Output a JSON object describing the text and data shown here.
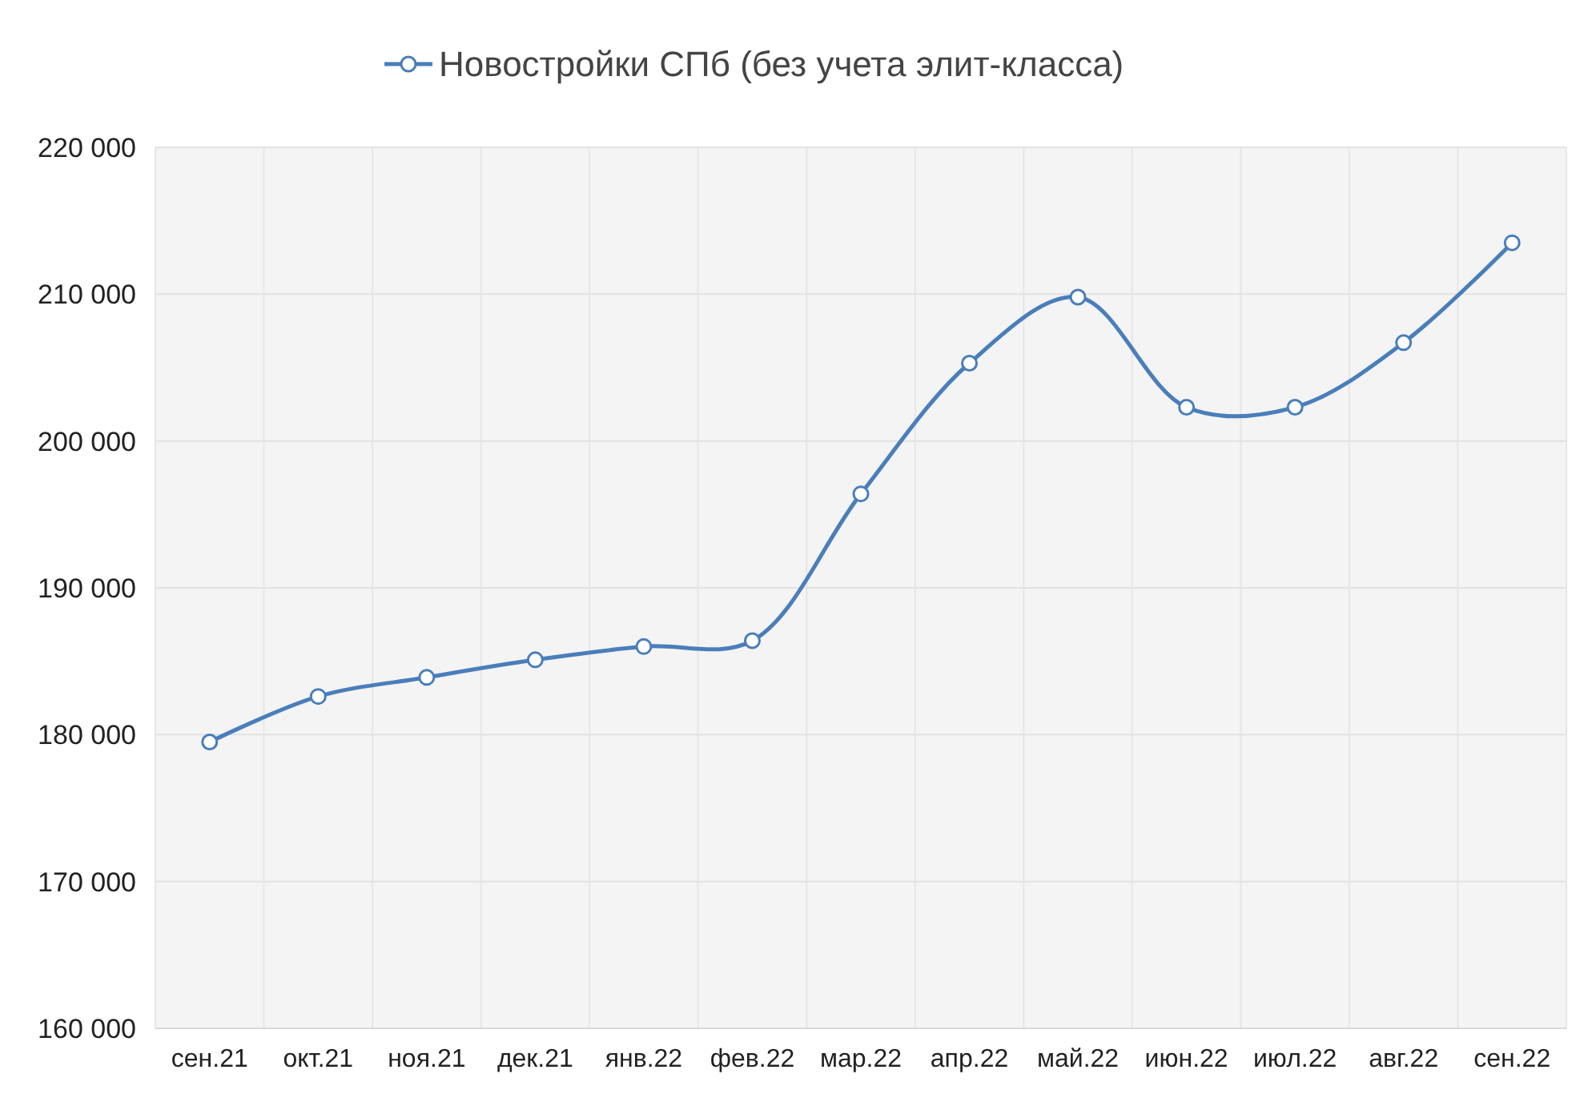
{
  "chart_data": {
    "type": "line",
    "categories": [
      "сен.21",
      "окт.21",
      "ноя.21",
      "дек.21",
      "янв.22",
      "фев.22",
      "мар.22",
      "апр.22",
      "май.22",
      "июн.22",
      "июл.22",
      "авг.22",
      "сен.22"
    ],
    "series": [
      {
        "name": "Новостройки СПб (без учета элит-класса)",
        "color": "#4a7ebb",
        "values": [
          179500,
          182600,
          183900,
          185100,
          186000,
          186400,
          196400,
          205300,
          209800,
          202300,
          202300,
          206700,
          213500
        ]
      }
    ],
    "ylim": [
      160000,
      220000
    ],
    "yticks": [
      {
        "value": 160000,
        "label": "160 000"
      },
      {
        "value": 170000,
        "label": "170 000"
      },
      {
        "value": 180000,
        "label": "180 000"
      },
      {
        "value": 190000,
        "label": "190 000"
      },
      {
        "value": 200000,
        "label": "200 000"
      },
      {
        "value": 210000,
        "label": "210 000"
      },
      {
        "value": 220000,
        "label": "220 000"
      }
    ],
    "grid": true,
    "legend": "top",
    "marker": "circle",
    "line_style": "solid"
  }
}
